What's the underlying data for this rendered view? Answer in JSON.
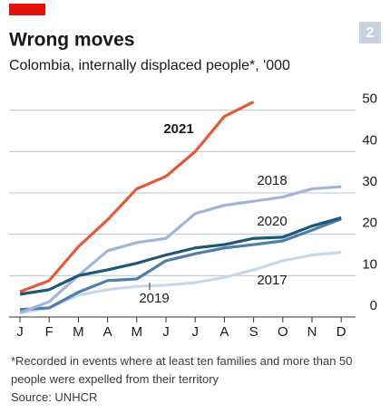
{
  "chart_data": {
    "type": "line",
    "title": "Wrong moves",
    "subtitle": "Colombia, internally displaced people*, '000",
    "badge": "2",
    "note": "*Recorded in events where at least ten families and more than 50 people were expelled from their territory",
    "source": "Source: UNHCR",
    "categories": [
      "J",
      "F",
      "M",
      "A",
      "M",
      "J",
      "J",
      "A",
      "S",
      "O",
      "N",
      "D"
    ],
    "series": [
      {
        "name": "2017",
        "color": "#c8d7ea",
        "values": [
          1,
          2.2,
          5.3,
          6.6,
          7.4,
          7.7,
          8.3,
          9.6,
          11.4,
          13.6,
          15,
          15.6
        ]
      },
      {
        "name": "2019",
        "color": "#4f7ea8",
        "values": [
          1.8,
          2.2,
          6,
          8.8,
          9.2,
          13.6,
          15.3,
          16.7,
          17.5,
          18.4,
          21,
          23.7
        ]
      },
      {
        "name": "2018",
        "color": "#9fb6d9",
        "values": [
          1,
          3.7,
          10,
          16,
          18,
          19,
          25,
          27,
          28,
          29,
          31,
          31.5
        ]
      },
      {
        "name": "2020",
        "color": "#1d5877",
        "values": [
          5.5,
          6.6,
          10,
          11.4,
          13,
          15,
          16.7,
          17.5,
          19,
          19.3,
          22,
          24
        ]
      },
      {
        "name": "2021",
        "color": "#e6583a",
        "values": [
          6.1,
          8.8,
          17,
          23.5,
          31,
          34,
          40,
          48.5,
          52,
          null,
          null,
          null
        ]
      }
    ],
    "ylim": [
      0,
      53
    ],
    "yticks": [
      0,
      10,
      20,
      30,
      40,
      50
    ],
    "grid": true
  }
}
